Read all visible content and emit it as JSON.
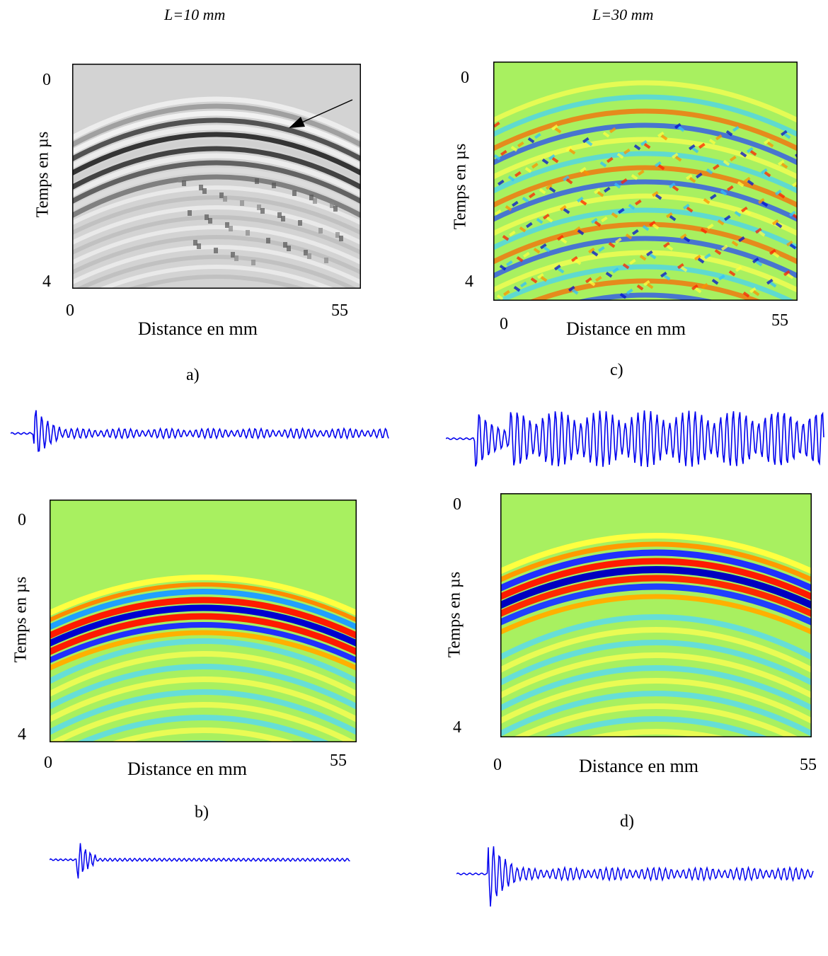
{
  "columns": {
    "left_title": "L=10 mm",
    "right_title": "L=30 mm"
  },
  "panels": {
    "a": {
      "caption": "a)",
      "xlabel": "Distance en mm",
      "ylabel": "Temps en µs",
      "x_ticks": [
        "0",
        "55"
      ],
      "y_ticks": [
        "0",
        "4"
      ],
      "colormap": "gray"
    },
    "b": {
      "caption": "b)",
      "xlabel": "Distance en mm",
      "ylabel": "Temps en µs",
      "x_ticks": [
        "0",
        "55"
      ],
      "y_ticks": [
        "0",
        "4"
      ],
      "colormap": "jet"
    },
    "c": {
      "caption": "c)",
      "xlabel": "Distance en mm",
      "ylabel": "Temps en µs",
      "x_ticks": [
        "0",
        "55"
      ],
      "y_ticks": [
        "0",
        "4"
      ],
      "colormap": "jet"
    },
    "d": {
      "caption": "d)",
      "xlabel": "Distance en mm",
      "ylabel": "Temps en µs",
      "x_ticks": [
        "0",
        "55"
      ],
      "y_ticks": [
        "0",
        "4"
      ],
      "colormap": "jet"
    }
  },
  "colors": {
    "signal": "#0000ee",
    "jet_background": "#a8f060",
    "gray_background": "#d3d3d3"
  },
  "chart_data": [
    {
      "type": "heatmap",
      "panel": "a",
      "xlabel": "Distance en mm",
      "ylabel": "Temps en µs",
      "xlim": [
        0,
        55
      ],
      "ylim": [
        0,
        4
      ]
    },
    {
      "type": "heatmap",
      "panel": "b",
      "xlabel": "Distance en mm",
      "ylabel": "Temps en µs",
      "xlim": [
        0,
        55
      ],
      "ylim": [
        0,
        4
      ]
    },
    {
      "type": "heatmap",
      "panel": "c",
      "xlabel": "Distance en mm",
      "ylabel": "Temps en µs",
      "xlim": [
        0,
        55
      ],
      "ylim": [
        0,
        4
      ]
    },
    {
      "type": "heatmap",
      "panel": "d",
      "xlabel": "Distance en mm",
      "ylabel": "Temps en µs",
      "xlim": [
        0,
        55
      ],
      "ylim": [
        0,
        4
      ]
    }
  ]
}
